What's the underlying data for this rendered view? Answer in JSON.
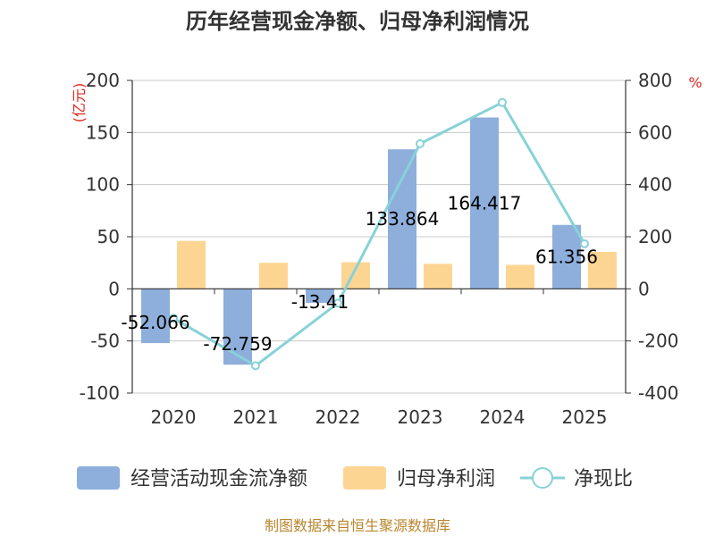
{
  "chart_data": {
    "type": "bar",
    "title": "历年经营现金净额、归母净利润情况",
    "categories": [
      "2020",
      "2021",
      "2022",
      "2023",
      "2024",
      "2025"
    ],
    "left_axis": {
      "unit": "(亿元)",
      "ylim": [
        -100,
        200
      ],
      "ticks": [
        200,
        150,
        100,
        50,
        0,
        -50,
        -100
      ]
    },
    "right_axis": {
      "unit": "%",
      "ylim": [
        -400,
        800
      ],
      "ticks": [
        800,
        600,
        400,
        200,
        0,
        -200,
        -400
      ]
    },
    "series": [
      {
        "name": "经营活动现金流净额",
        "kind": "bar",
        "axis": "left",
        "color": "#8eaedb",
        "values": [
          -52.066,
          -72.759,
          -13.41,
          133.864,
          164.417,
          61.356
        ],
        "labels": [
          "-52.066",
          "-72.759",
          "-13.41",
          "133.864",
          "164.417",
          "61.356"
        ]
      },
      {
        "name": "归母净利润",
        "kind": "bar",
        "axis": "left",
        "color": "#fdd593",
        "values": [
          46,
          25,
          25.5,
          24,
          23,
          35.5
        ]
      },
      {
        "name": "净现比",
        "kind": "line",
        "axis": "right",
        "color": "#87d2d8",
        "values": [
          -113,
          -295,
          -55,
          557,
          715,
          173
        ]
      }
    ],
    "source": "制图数据来自恒生聚源数据库"
  }
}
